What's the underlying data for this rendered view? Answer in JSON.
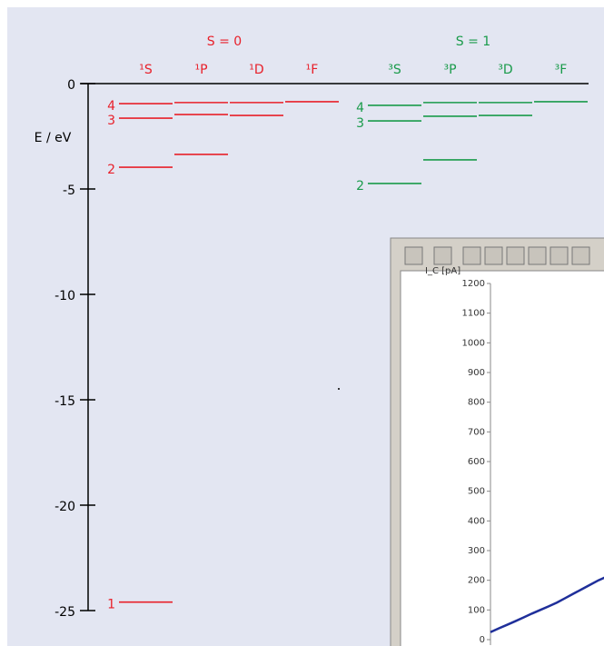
{
  "chart_data": [
    {
      "type": "energy-levels",
      "ylabel": "E / eV",
      "ylim": [
        -25,
        0
      ],
      "yticks": [
        0,
        -5,
        -10,
        -15,
        -20,
        -25
      ],
      "groups": [
        {
          "name": "S = 0",
          "color": "#e8202a",
          "columns": [
            {
              "label": "¹S",
              "levels": [
                -24.6,
                -3.97,
                -1.64,
                -0.95
              ],
              "level_labels": [
                1,
                2,
                3,
                4
              ]
            },
            {
              "label": "¹P",
              "levels": [
                -3.36,
                -1.47,
                -0.9
              ]
            },
            {
              "label": "¹D",
              "levels": [
                -1.51,
                -0.9
              ]
            },
            {
              "label": "¹F",
              "levels": [
                -0.86
              ]
            }
          ]
        },
        {
          "name": "S = 1",
          "color": "#1a9b4b",
          "columns": [
            {
              "label": "³S",
              "levels": [
                -4.74,
                -1.77,
                -1.03
              ],
              "level_labels": [
                2,
                3,
                4
              ]
            },
            {
              "label": "³P",
              "levels": [
                -3.62,
                -1.55,
                -0.9
              ]
            },
            {
              "label": "³D",
              "levels": [
                -1.51,
                -0.9
              ]
            },
            {
              "label": "³F",
              "levels": [
                -0.86
              ]
            }
          ]
        }
      ]
    },
    {
      "type": "line",
      "ylabel": "I_C [pA]",
      "ylim": [
        0,
        1200
      ],
      "yticks": [
        0,
        100,
        200,
        300,
        400,
        500,
        600,
        700,
        800,
        900,
        1000,
        1100,
        1200
      ],
      "color": "#1f2f9a",
      "values": [
        25,
        38,
        50,
        62,
        75,
        88,
        100,
        112,
        125,
        140,
        155,
        170,
        185,
        200,
        212
      ]
    }
  ]
}
